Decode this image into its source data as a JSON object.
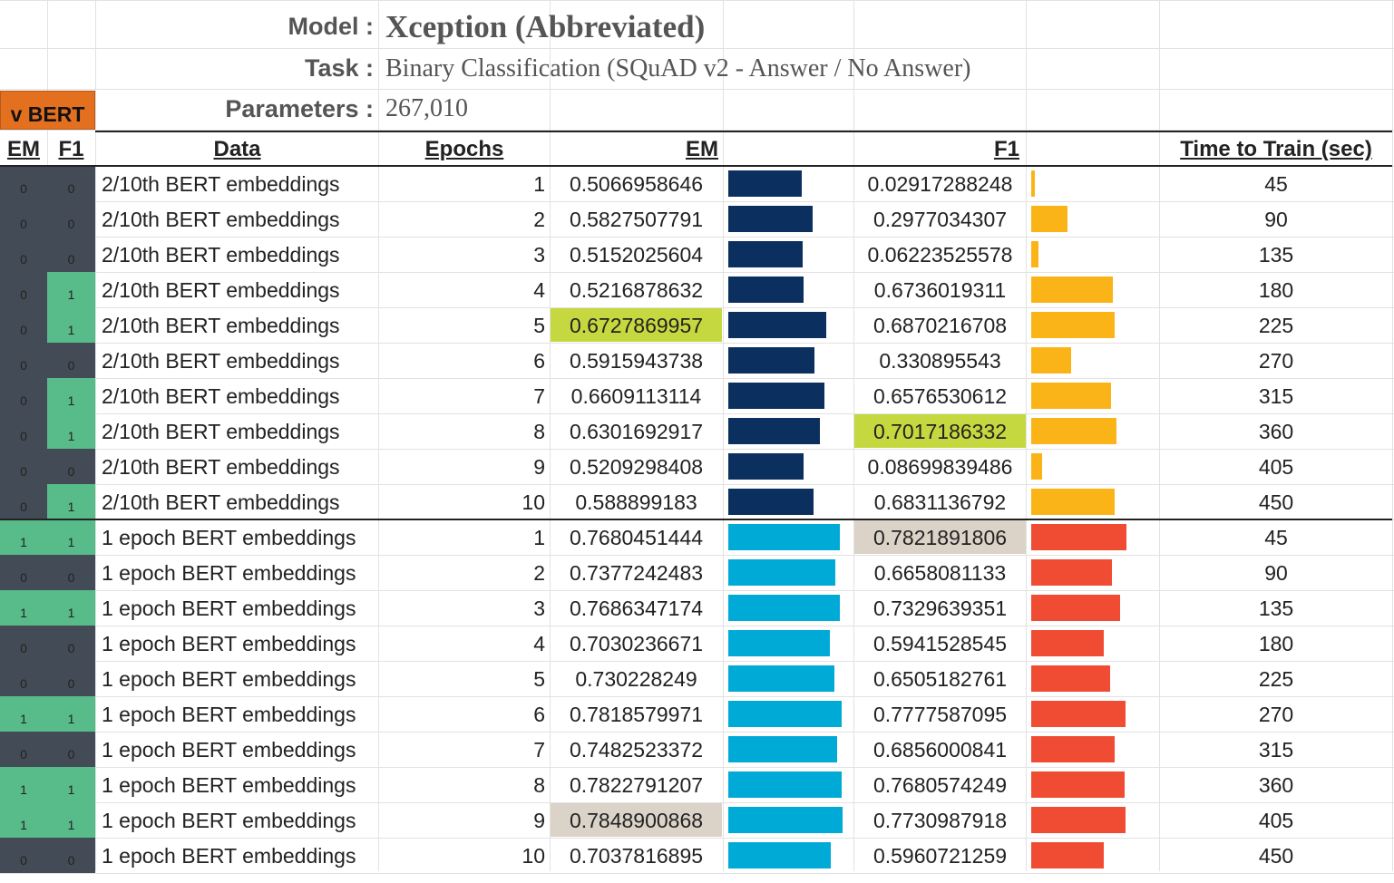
{
  "info": {
    "model_label": "Model :",
    "model_value": "Xception (Abbreviated)",
    "task_label": "Task :",
    "task_value": "Binary Classification (SQuAD v2 - Answer / No Answer)",
    "params_label": "Parameters :",
    "params_value": "267,010"
  },
  "badge": "v BERT",
  "headers": {
    "em_flag": "EM",
    "f1_flag": "F1",
    "data": "Data",
    "epochs": "Epochs",
    "em": "EM",
    "f1": "F1",
    "time": "Time to Train (sec)"
  },
  "colors": {
    "flag_zero": "#434c56",
    "flag_one": "#57bb8a",
    "em_bar_group1": "#0b2f5e",
    "f1_bar_group1": "#fbb417",
    "em_bar_group2": "#00aad6",
    "f1_bar_group2": "#ef4c33",
    "highlight_best": "#c6d83f",
    "highlight_top": "#dcd3c8"
  },
  "rows": [
    {
      "em_flag": "0",
      "f1_flag": "0",
      "data": "2/10th BERT embeddings",
      "epochs": "1",
      "em": "0.5066958646",
      "f1": "0.02917288248",
      "time": "45",
      "group": 1,
      "em_hl": "",
      "f1_hl": ""
    },
    {
      "em_flag": "0",
      "f1_flag": "0",
      "data": "2/10th BERT embeddings",
      "epochs": "2",
      "em": "0.5827507791",
      "f1": "0.2977034307",
      "time": "90",
      "group": 1,
      "em_hl": "",
      "f1_hl": ""
    },
    {
      "em_flag": "0",
      "f1_flag": "0",
      "data": "2/10th BERT embeddings",
      "epochs": "3",
      "em": "0.5152025604",
      "f1": "0.06223525578",
      "time": "135",
      "group": 1,
      "em_hl": "",
      "f1_hl": ""
    },
    {
      "em_flag": "0",
      "f1_flag": "1",
      "data": "2/10th BERT embeddings",
      "epochs": "4",
      "em": "0.5216878632",
      "f1": "0.6736019311",
      "time": "180",
      "group": 1,
      "em_hl": "",
      "f1_hl": ""
    },
    {
      "em_flag": "0",
      "f1_flag": "1",
      "data": "2/10th BERT embeddings",
      "epochs": "5",
      "em": "0.6727869957",
      "f1": "0.6870216708",
      "time": "225",
      "group": 1,
      "em_hl": "best",
      "f1_hl": ""
    },
    {
      "em_flag": "0",
      "f1_flag": "0",
      "data": "2/10th BERT embeddings",
      "epochs": "6",
      "em": "0.5915943738",
      "f1": "0.330895543",
      "time": "270",
      "group": 1,
      "em_hl": "",
      "f1_hl": ""
    },
    {
      "em_flag": "0",
      "f1_flag": "1",
      "data": "2/10th BERT embeddings",
      "epochs": "7",
      "em": "0.6609113114",
      "f1": "0.6576530612",
      "time": "315",
      "group": 1,
      "em_hl": "",
      "f1_hl": ""
    },
    {
      "em_flag": "0",
      "f1_flag": "1",
      "data": "2/10th BERT embeddings",
      "epochs": "8",
      "em": "0.6301692917",
      "f1": "0.7017186332",
      "time": "360",
      "group": 1,
      "em_hl": "",
      "f1_hl": "best"
    },
    {
      "em_flag": "0",
      "f1_flag": "0",
      "data": "2/10th BERT embeddings",
      "epochs": "9",
      "em": "0.5209298408",
      "f1": "0.08699839486",
      "time": "405",
      "group": 1,
      "em_hl": "",
      "f1_hl": ""
    },
    {
      "em_flag": "0",
      "f1_flag": "1",
      "data": "2/10th BERT embeddings",
      "epochs": "10",
      "em": "0.588899183",
      "f1": "0.6831136792",
      "time": "450",
      "group": 1,
      "em_hl": "",
      "f1_hl": ""
    },
    {
      "em_flag": "1",
      "f1_flag": "1",
      "data": "1 epoch BERT embeddings",
      "epochs": "1",
      "em": "0.7680451444",
      "f1": "0.7821891806",
      "time": "45",
      "group": 2,
      "em_hl": "",
      "f1_hl": "top"
    },
    {
      "em_flag": "0",
      "f1_flag": "0",
      "data": "1 epoch BERT embeddings",
      "epochs": "2",
      "em": "0.7377242483",
      "f1": "0.6658081133",
      "time": "90",
      "group": 2,
      "em_hl": "",
      "f1_hl": ""
    },
    {
      "em_flag": "1",
      "f1_flag": "1",
      "data": "1 epoch BERT embeddings",
      "epochs": "3",
      "em": "0.7686347174",
      "f1": "0.7329639351",
      "time": "135",
      "group": 2,
      "em_hl": "",
      "f1_hl": ""
    },
    {
      "em_flag": "0",
      "f1_flag": "0",
      "data": "1 epoch BERT embeddings",
      "epochs": "4",
      "em": "0.7030236671",
      "f1": "0.5941528545",
      "time": "180",
      "group": 2,
      "em_hl": "",
      "f1_hl": ""
    },
    {
      "em_flag": "0",
      "f1_flag": "0",
      "data": "1 epoch BERT embeddings",
      "epochs": "5",
      "em": "0.730228249",
      "f1": "0.6505182761",
      "time": "225",
      "group": 2,
      "em_hl": "",
      "f1_hl": ""
    },
    {
      "em_flag": "1",
      "f1_flag": "1",
      "data": "1 epoch BERT embeddings",
      "epochs": "6",
      "em": "0.7818579971",
      "f1": "0.7777587095",
      "time": "270",
      "group": 2,
      "em_hl": "",
      "f1_hl": ""
    },
    {
      "em_flag": "0",
      "f1_flag": "0",
      "data": "1 epoch BERT embeddings",
      "epochs": "7",
      "em": "0.7482523372",
      "f1": "0.6856000841",
      "time": "315",
      "group": 2,
      "em_hl": "",
      "f1_hl": ""
    },
    {
      "em_flag": "1",
      "f1_flag": "1",
      "data": "1 epoch BERT embeddings",
      "epochs": "8",
      "em": "0.7822791207",
      "f1": "0.7680574249",
      "time": "360",
      "group": 2,
      "em_hl": "",
      "f1_hl": ""
    },
    {
      "em_flag": "1",
      "f1_flag": "1",
      "data": "1 epoch BERT embeddings",
      "epochs": "9",
      "em": "0.7848900868",
      "f1": "0.7730987918",
      "time": "405",
      "group": 2,
      "em_hl": "top",
      "f1_hl": ""
    },
    {
      "em_flag": "0",
      "f1_flag": "0",
      "data": "1 epoch BERT embeddings",
      "epochs": "10",
      "em": "0.7037816895",
      "f1": "0.5960721259",
      "time": "450",
      "group": 2,
      "em_hl": "",
      "f1_hl": ""
    }
  ]
}
